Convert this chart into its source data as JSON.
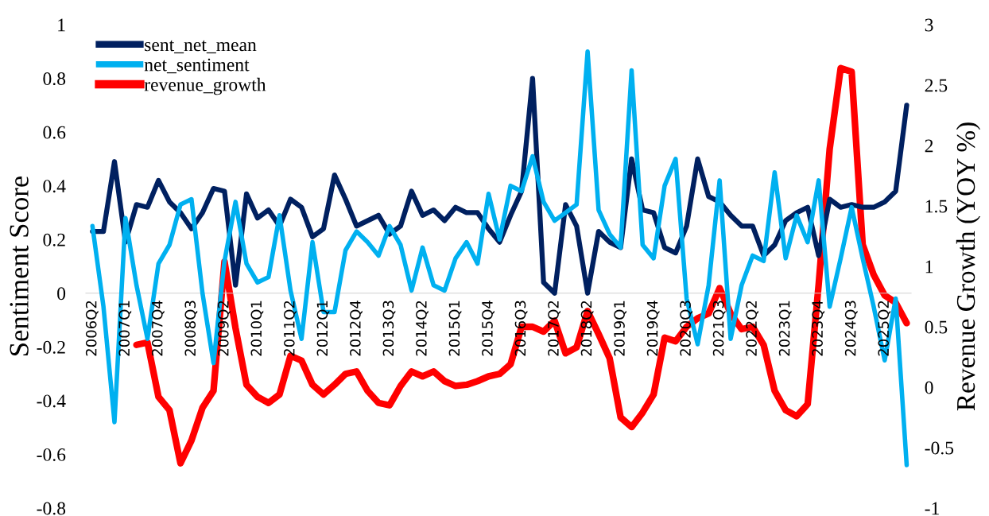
{
  "chart_data": {
    "type": "line",
    "ylabel": "Sentiment Score",
    "y2label": "Revenue Growth (YOY %)",
    "categories": [
      "2006Q2",
      null,
      null,
      "2007Q1",
      null,
      null,
      "2007Q4",
      null,
      null,
      "2008Q3",
      null,
      null,
      "2009Q2",
      null,
      null,
      "2010Q1",
      null,
      null,
      "2011Q2",
      null,
      null,
      "2012Q1",
      null,
      null,
      "2012Q4",
      null,
      null,
      "2013Q3",
      null,
      null,
      "2014Q2",
      null,
      null,
      "2015Q1",
      null,
      null,
      "2015Q4",
      null,
      null,
      "2016Q3",
      null,
      null,
      "2017Q2",
      null,
      null,
      "2018Q2",
      null,
      null,
      "2019Q1",
      null,
      null,
      "2019Q4",
      null,
      null,
      "2020Q3",
      null,
      null,
      "2021Q3",
      null,
      null,
      "2022Q2",
      null,
      null,
      "2023Q1",
      null,
      null,
      "2023Q4",
      null,
      null,
      "2024Q3",
      null,
      null,
      "2025Q2",
      null,
      null
    ],
    "series": [
      {
        "name": "sent_net_mean",
        "color": "#002060",
        "values": [
          0.23,
          0.23,
          0.49,
          0.19,
          0.33,
          0.32,
          0.42,
          0.34,
          0.3,
          0.24,
          0.3,
          0.39,
          0.38,
          0.03,
          0.37,
          0.28,
          0.31,
          0.25,
          0.35,
          0.32,
          0.21,
          0.24,
          0.44,
          0.35,
          0.25,
          0.27,
          0.29,
          0.22,
          0.25,
          0.38,
          0.29,
          0.31,
          0.27,
          0.32,
          0.3,
          0.3,
          0.24,
          0.19,
          0.29,
          0.38,
          0.8,
          0.04,
          0.0,
          0.33,
          0.25,
          0.0,
          0.23,
          0.19,
          0.17,
          0.5,
          0.31,
          0.3,
          0.17,
          0.15,
          0.25,
          0.5,
          0.36,
          0.34,
          0.29,
          0.25,
          0.25,
          0.14,
          0.18,
          0.27,
          0.3,
          0.32,
          0.14,
          0.35,
          0.32,
          0.33,
          0.32,
          0.32,
          0.34,
          0.38,
          0.7
        ]
      },
      {
        "name": "net_sentiment",
        "color": "#00b0f0",
        "values": [
          0.25,
          -0.05,
          -0.48,
          0.28,
          0.03,
          -0.17,
          0.11,
          0.18,
          0.33,
          0.35,
          0.0,
          -0.26,
          0.12,
          0.34,
          0.11,
          0.04,
          0.06,
          0.29,
          0.01,
          -0.17,
          0.19,
          -0.07,
          -0.07,
          0.16,
          0.23,
          0.19,
          0.14,
          0.25,
          0.18,
          0.01,
          0.17,
          0.03,
          0.01,
          0.13,
          0.19,
          0.11,
          0.37,
          0.2,
          0.4,
          0.38,
          0.51,
          0.34,
          0.27,
          0.3,
          0.33,
          0.9,
          0.31,
          0.22,
          0.17,
          0.83,
          0.18,
          0.13,
          0.4,
          0.5,
          -0.02,
          -0.19,
          0.03,
          0.42,
          -0.17,
          0.03,
          0.14,
          0.12,
          0.45,
          0.13,
          0.29,
          0.19,
          0.42,
          -0.05,
          0.13,
          0.32,
          0.13,
          -0.05,
          -0.25,
          -0.02,
          -0.64
        ]
      },
      {
        "name": "revenue_growth",
        "color": "#ff0000",
        "axis": "y2",
        "values": [
          null,
          null,
          null,
          null,
          0.35,
          0.37,
          -0.08,
          -0.19,
          -0.63,
          -0.44,
          -0.17,
          -0.03,
          1.04,
          0.49,
          0.02,
          -0.08,
          -0.13,
          -0.06,
          0.26,
          0.22,
          0.02,
          -0.06,
          0.02,
          0.11,
          0.13,
          -0.03,
          -0.13,
          -0.15,
          0.01,
          0.13,
          0.09,
          0.13,
          0.05,
          0.01,
          0.02,
          0.05,
          0.09,
          0.11,
          0.19,
          0.5,
          0.5,
          0.46,
          0.55,
          0.28,
          0.33,
          0.63,
          0.44,
          0.24,
          -0.25,
          -0.33,
          -0.21,
          -0.06,
          0.41,
          0.38,
          0.5,
          0.57,
          0.61,
          0.82,
          0.61,
          0.48,
          0.5,
          0.35,
          -0.03,
          -0.19,
          -0.24,
          -0.14,
          0.85,
          1.97,
          2.64,
          2.61,
          1.18,
          0.93,
          0.76,
          0.7,
          0.53
        ]
      }
    ],
    "ylim": [
      -0.8,
      1
    ],
    "yticks": [
      -0.8,
      -0.6,
      -0.4,
      -0.2,
      0,
      0.2,
      0.4,
      0.6,
      0.8,
      1
    ],
    "y2lim": [
      -1,
      3
    ],
    "y2ticks": [
      -1,
      -0.5,
      0,
      0.5,
      1,
      1.5,
      2,
      2.5,
      3
    ],
    "legend": "top left",
    "grid": false,
    "marker": "none",
    "line_style": "solid"
  }
}
